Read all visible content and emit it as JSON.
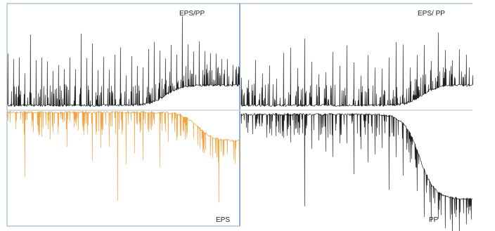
{
  "figure": {
    "panels": [
      {
        "id": "left-top",
        "label": "EPS/PP",
        "color": "#222222",
        "orientation": "up"
      },
      {
        "id": "left-bottom",
        "label": "EPS",
        "color": "#f4a340",
        "orientation": "down"
      },
      {
        "id": "right-top",
        "label": "EPS/ PP",
        "color": "#222222",
        "orientation": "up"
      },
      {
        "id": "right-bottom",
        "label": "PP",
        "color": "#222222",
        "orientation": "down"
      }
    ],
    "frame_color": "#8aa9cf",
    "divider_color": "#b8cce4"
  },
  "chart_data": [
    {
      "type": "line",
      "title": "EPS/PP",
      "xlabel": "",
      "ylabel": "",
      "grid": false,
      "series": [
        {
          "peaks": [
            0.58,
            0.6,
            0.42,
            0.8,
            0.56,
            0.6,
            0.5,
            0.4,
            0.52,
            0.45,
            0.55,
            0.4,
            0.82,
            0.6,
            0.7,
            0.45,
            0.58,
            0.4,
            0.65,
            0.35,
            0.6,
            0.5,
            0.45,
            0.65,
            0.72,
            0.58,
            0.4,
            0.55,
            0.45,
            0.92,
            0.5,
            0.45,
            0.55,
            0.4,
            0.35,
            0.4,
            0.3,
            0.25,
            0.2
          ]
        }
      ]
    },
    {
      "type": "line",
      "title": "EPS",
      "xlabel": "",
      "ylabel": "",
      "grid": false,
      "series": [
        {
          "peaks": [
            0.1,
            0.7,
            0.2,
            0.25,
            0.3,
            0.15,
            0.35,
            0.12,
            0.25,
            0.5,
            0.4,
            0.35,
            0.94,
            0.6,
            0.45,
            0.55,
            0.2,
            0.55,
            0.3,
            0.22,
            0.15,
            0.1,
            0.2,
            0.65,
            0.15,
            0.1
          ]
        }
      ]
    },
    {
      "type": "line",
      "title": "EPS/ PP",
      "xlabel": "",
      "ylabel": "",
      "grid": false,
      "series": [
        {
          "peaks": [
            0.3,
            0.55,
            0.4,
            0.45,
            0.3,
            0.6,
            0.7,
            0.45,
            0.8,
            0.55,
            0.4,
            0.6,
            0.45,
            0.7,
            0.55,
            0.35,
            0.62,
            0.45,
            0.4,
            0.6,
            0.72,
            0.4,
            0.48,
            0.55,
            0.35,
            0.62,
            0.45,
            0.3,
            0.4,
            0.35
          ]
        }
      ]
    },
    {
      "type": "line",
      "title": "PP",
      "xlabel": "",
      "ylabel": "",
      "grid": false,
      "series": [
        {
          "peaks": [
            0.1,
            0.15,
            0.1,
            0.2,
            0.15,
            0.25,
            0.3,
            0.2,
            0.95,
            0.35,
            0.3,
            0.4,
            0.45,
            0.35,
            0.3,
            0.7,
            0.4,
            0.5,
            0.45,
            0.35,
            0.85,
            0.4,
            0.55,
            0.35,
            0.45,
            0.5,
            0.4,
            0.3,
            0.35,
            0.45,
            0.4,
            0.3
          ]
        }
      ]
    }
  ]
}
